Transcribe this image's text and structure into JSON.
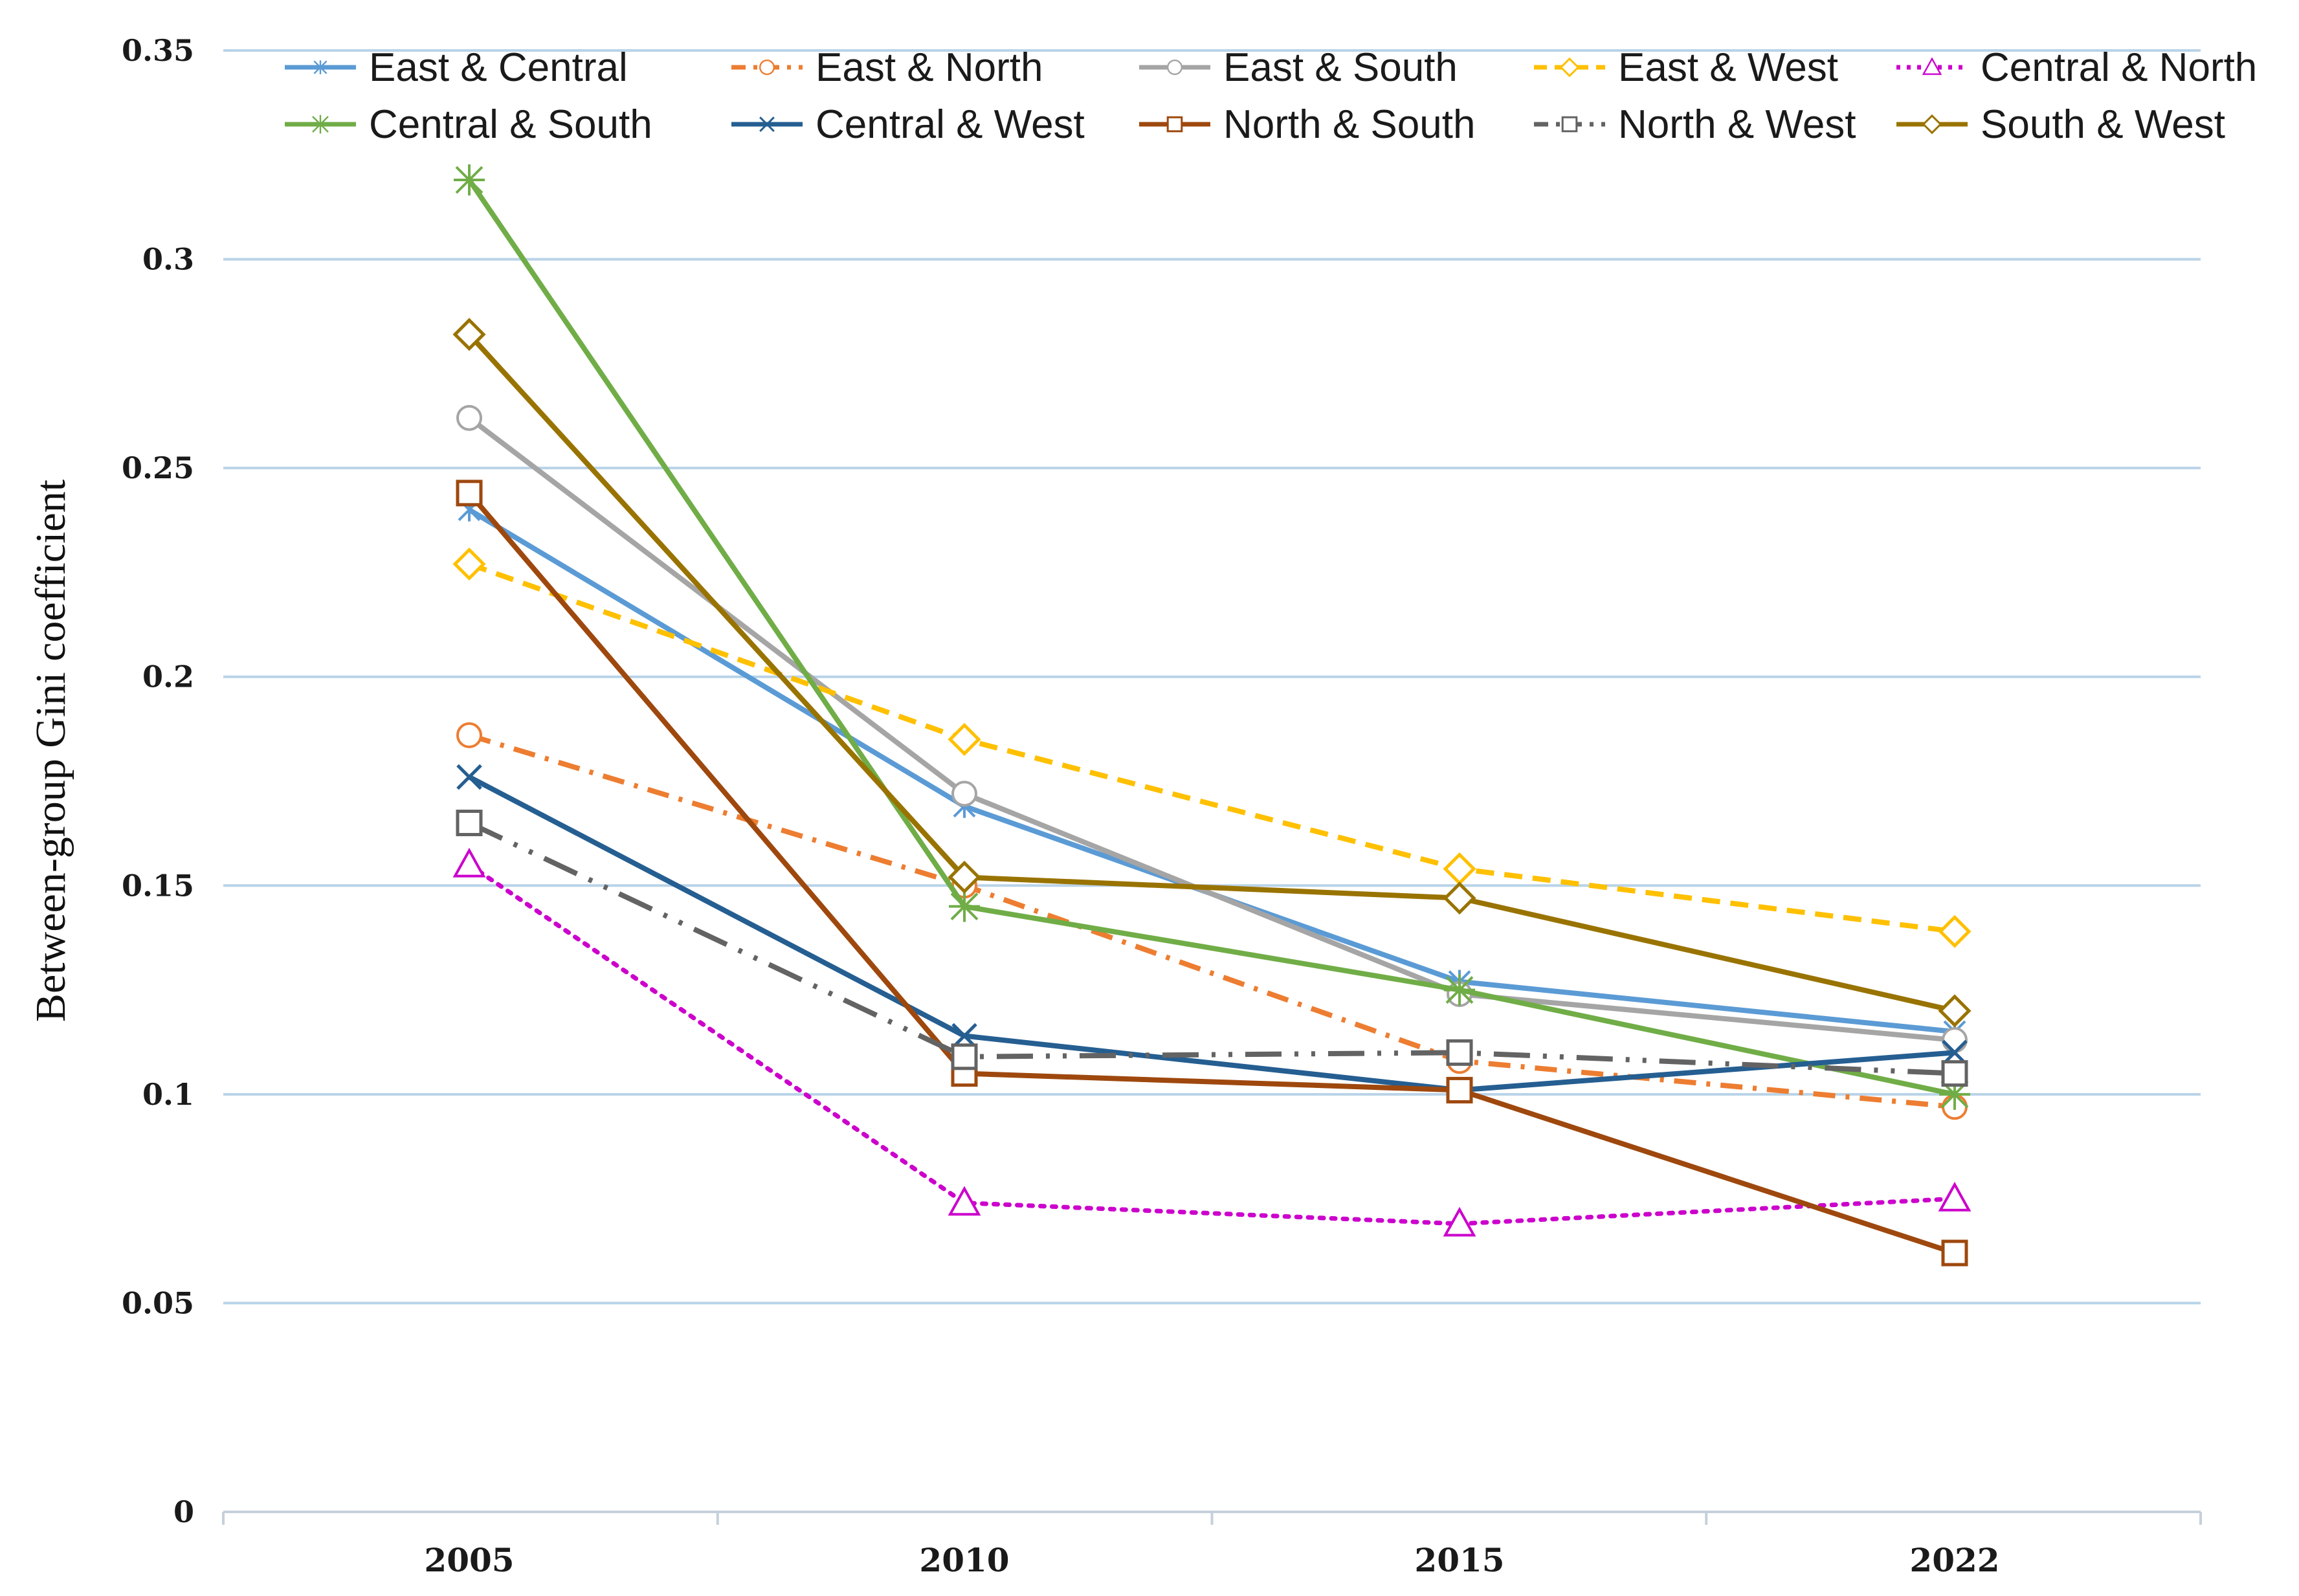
{
  "chart_data": {
    "type": "line",
    "title": "",
    "xlabel": "",
    "ylabel": "Between-group Gini coefficient",
    "categories": [
      "2005",
      "2010",
      "2015",
      "2022"
    ],
    "ylim": [
      0,
      0.35
    ],
    "yticks": [
      0,
      0.05,
      0.1,
      0.15,
      0.2,
      0.25,
      0.3,
      0.35
    ],
    "ytick_labels": [
      "0",
      "0.05",
      "0.1",
      "0.15",
      "0.2",
      "0.25",
      "0.3",
      "0.35"
    ],
    "grid": true,
    "legend_position": "top",
    "series": [
      {
        "name": "East & Central",
        "color": "#5b9bd5",
        "dash": "solid",
        "marker": "star",
        "values": [
          0.24,
          0.169,
          0.127,
          0.115
        ]
      },
      {
        "name": "East & North",
        "color": "#ed7d31",
        "dash": "dashdot",
        "marker": "circle",
        "values": [
          0.186,
          0.15,
          0.108,
          0.097
        ]
      },
      {
        "name": "East & South",
        "color": "#a5a5a5",
        "dash": "solid",
        "marker": "circle",
        "values": [
          0.262,
          0.172,
          0.124,
          0.113
        ]
      },
      {
        "name": "East & West",
        "color": "#ffc000",
        "dash": "dashed",
        "marker": "diamond",
        "values": [
          0.227,
          0.185,
          0.154,
          0.139
        ]
      },
      {
        "name": "Central & North",
        "color": "#cc00cc",
        "dash": "dotted",
        "marker": "triangle",
        "values": [
          0.155,
          0.074,
          0.069,
          0.075
        ]
      },
      {
        "name": "Central & South",
        "color": "#70ad47",
        "dash": "solid",
        "marker": "asterisk",
        "values": [
          0.319,
          0.145,
          0.125,
          0.1
        ]
      },
      {
        "name": "Central & West",
        "color": "#255e91",
        "dash": "solid",
        "marker": "x",
        "values": [
          0.176,
          0.114,
          0.101,
          0.11
        ]
      },
      {
        "name": "North & South",
        "color": "#9e480e",
        "dash": "solid",
        "marker": "square",
        "values": [
          0.244,
          0.105,
          0.101,
          0.062
        ]
      },
      {
        "name": "North & West",
        "color": "#636363",
        "dash": "longdashdot",
        "marker": "square",
        "values": [
          0.165,
          0.109,
          0.11,
          0.105
        ]
      },
      {
        "name": "South & West",
        "color": "#997300",
        "dash": "solid",
        "marker": "diamond",
        "values": [
          0.282,
          0.152,
          0.147,
          0.12
        ]
      }
    ]
  }
}
